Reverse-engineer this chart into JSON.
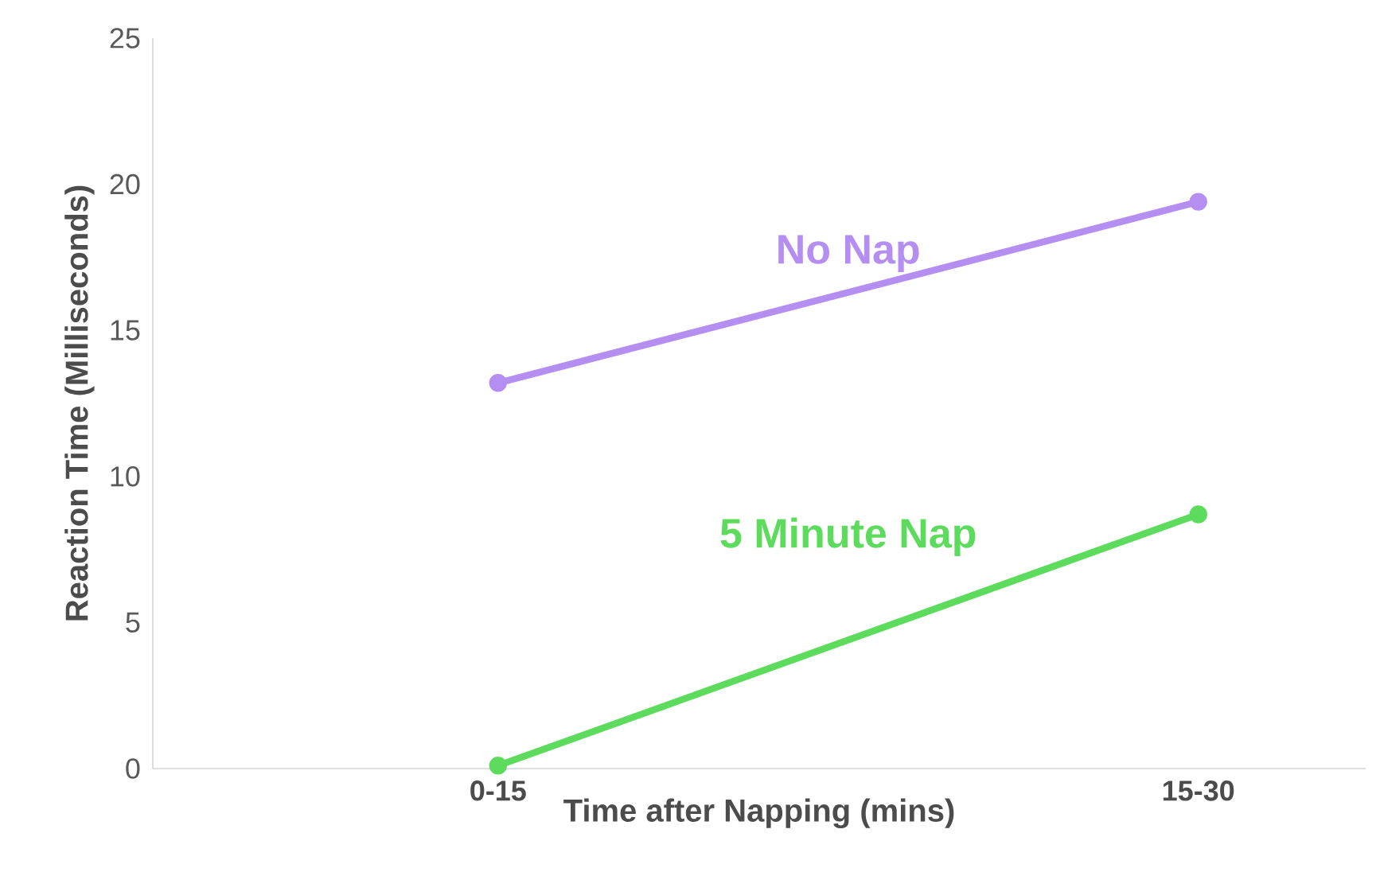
{
  "chart_data": {
    "type": "line",
    "xlabel": "Time after Napping (mins)",
    "ylabel": "Reaction Time (Milliseconds)",
    "categories": [
      "0-15",
      "15-30"
    ],
    "series": [
      {
        "name": "No Nap",
        "color": "#b48ef0",
        "values": [
          13.2,
          19.4
        ]
      },
      {
        "name": "5 Minute Nap",
        "color": "#5cdb5c",
        "values": [
          0.1,
          8.7
        ]
      }
    ],
    "ylim": [
      0,
      25
    ],
    "yticks": [
      0,
      5,
      10,
      15,
      20,
      25
    ],
    "grid": false,
    "legend": false,
    "marker": "circle",
    "line_style": "solid"
  }
}
